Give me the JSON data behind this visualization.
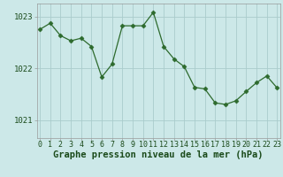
{
  "x": [
    0,
    1,
    2,
    3,
    4,
    5,
    6,
    7,
    8,
    9,
    10,
    11,
    12,
    13,
    14,
    15,
    16,
    17,
    18,
    19,
    20,
    21,
    22,
    23
  ],
  "y": [
    1022.75,
    1022.87,
    1022.63,
    1022.53,
    1022.58,
    1022.42,
    1021.83,
    1022.08,
    1022.82,
    1022.82,
    1022.82,
    1023.08,
    1022.42,
    1022.18,
    1022.03,
    1021.63,
    1021.6,
    1021.33,
    1021.3,
    1021.37,
    1021.55,
    1021.72,
    1021.85,
    1021.62
  ],
  "line_color": "#2d6a2d",
  "marker": "D",
  "marker_size": 2.5,
  "bg_color": "#cce8e8",
  "grid_color": "#aacccc",
  "xlabel": "Graphe pression niveau de la mer (hPa)",
  "xlabel_fontsize": 7.5,
  "tick_labels": [
    "0",
    "1",
    "2",
    "3",
    "4",
    "5",
    "6",
    "7",
    "8",
    "9",
    "10",
    "11",
    "12",
    "13",
    "14",
    "15",
    "16",
    "17",
    "18",
    "19",
    "20",
    "21",
    "22",
    "23"
  ],
  "yticks": [
    1021,
    1022,
    1023
  ],
  "ylim": [
    1020.65,
    1023.25
  ],
  "xlim": [
    -0.3,
    23.3
  ],
  "tick_fontsize": 6,
  "ytick_fontsize": 6.5,
  "line_width": 0.9
}
